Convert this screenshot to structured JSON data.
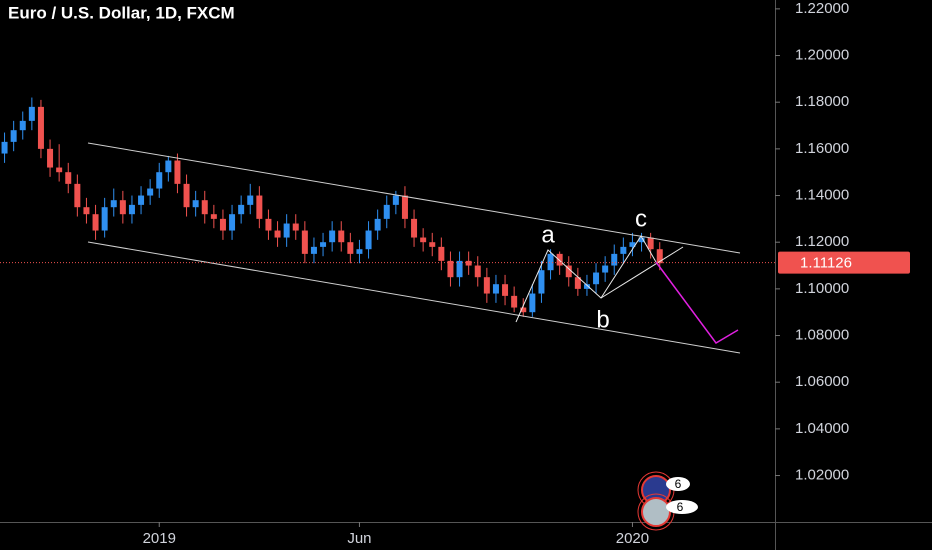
{
  "chart_data": {
    "type": "candlestick",
    "title": "Euro / U.S. Dollar, 1D, FXCM",
    "categories": [
      null,
      null,
      null,
      null,
      null,
      null,
      null,
      null,
      null,
      null,
      null,
      null,
      null,
      null,
      null,
      null,
      null,
      "2019",
      null,
      null,
      null,
      null,
      null,
      null,
      null,
      null,
      null,
      null,
      null,
      null,
      null,
      null,
      null,
      null,
      null,
      null,
      null,
      null,
      null,
      "Jun",
      null,
      null,
      null,
      null,
      null,
      null,
      null,
      null,
      null,
      null,
      null,
      null,
      null,
      null,
      null,
      null,
      null,
      null,
      null,
      null,
      null,
      null,
      null,
      null,
      null,
      null,
      null,
      null,
      null,
      "2020",
      null,
      null,
      null
    ],
    "open": [
      1.158,
      1.163,
      1.168,
      1.172,
      1.178,
      1.16,
      1.152,
      1.15,
      1.145,
      1.135,
      1.132,
      1.125,
      1.135,
      1.138,
      1.132,
      1.136,
      1.14,
      1.143,
      1.15,
      1.155,
      1.145,
      1.135,
      1.138,
      1.132,
      1.13,
      1.125,
      1.132,
      1.136,
      1.14,
      1.13,
      1.125,
      1.122,
      1.128,
      1.125,
      1.115,
      1.118,
      1.12,
      1.125,
      1.12,
      1.115,
      1.117,
      1.125,
      1.13,
      1.136,
      1.14,
      1.13,
      1.122,
      1.12,
      1.118,
      1.112,
      1.105,
      1.112,
      1.11,
      1.105,
      1.098,
      1.102,
      1.097,
      1.092,
      1.09,
      1.098,
      1.108,
      1.115,
      1.11,
      1.105,
      1.1,
      1.102,
      1.107,
      1.11,
      1.115,
      1.118,
      1.12,
      1.122,
      1.117
    ],
    "high": [
      1.167,
      1.172,
      1.176,
      1.182,
      1.181,
      1.164,
      1.162,
      1.154,
      1.149,
      1.139,
      1.136,
      1.139,
      1.143,
      1.142,
      1.14,
      1.144,
      1.147,
      1.154,
      1.157,
      1.158,
      1.149,
      1.142,
      1.142,
      1.136,
      1.134,
      1.136,
      1.14,
      1.145,
      1.144,
      1.134,
      1.129,
      1.132,
      1.132,
      1.129,
      1.122,
      1.124,
      1.129,
      1.129,
      1.124,
      1.121,
      1.129,
      1.134,
      1.14,
      1.142,
      1.144,
      1.134,
      1.126,
      1.124,
      1.122,
      1.116,
      1.116,
      1.116,
      1.114,
      1.109,
      1.106,
      1.106,
      1.101,
      1.096,
      1.102,
      1.112,
      1.117,
      1.116,
      1.114,
      1.109,
      1.106,
      1.111,
      1.114,
      1.119,
      1.122,
      1.124,
      1.124,
      1.124,
      1.12
    ],
    "low": [
      1.154,
      1.159,
      1.164,
      1.168,
      1.156,
      1.148,
      1.146,
      1.141,
      1.131,
      1.128,
      1.121,
      1.122,
      1.131,
      1.128,
      1.128,
      1.132,
      1.136,
      1.139,
      1.146,
      1.141,
      1.131,
      1.131,
      1.128,
      1.126,
      1.121,
      1.121,
      1.128,
      1.132,
      1.126,
      1.121,
      1.118,
      1.118,
      1.121,
      1.111,
      1.111,
      1.114,
      1.116,
      1.116,
      1.111,
      1.111,
      1.113,
      1.121,
      1.126,
      1.132,
      1.126,
      1.118,
      1.116,
      1.114,
      1.108,
      1.101,
      1.101,
      1.106,
      1.101,
      1.094,
      1.094,
      1.093,
      1.09,
      1.088,
      1.088,
      1.094,
      1.104,
      1.106,
      1.101,
      1.097,
      1.097,
      1.098,
      1.103,
      1.106,
      1.111,
      1.114,
      1.116,
      1.113,
      1.108
    ],
    "close": [
      1.163,
      1.168,
      1.172,
      1.178,
      1.16,
      1.152,
      1.15,
      1.145,
      1.135,
      1.132,
      1.125,
      1.135,
      1.138,
      1.132,
      1.136,
      1.14,
      1.143,
      1.15,
      1.155,
      1.145,
      1.135,
      1.138,
      1.132,
      1.13,
      1.125,
      1.132,
      1.136,
      1.14,
      1.13,
      1.125,
      1.122,
      1.128,
      1.125,
      1.115,
      1.118,
      1.12,
      1.125,
      1.12,
      1.115,
      1.117,
      1.125,
      1.13,
      1.136,
      1.14,
      1.13,
      1.122,
      1.12,
      1.118,
      1.112,
      1.105,
      1.112,
      1.11,
      1.105,
      1.098,
      1.102,
      1.097,
      1.092,
      1.09,
      1.098,
      1.108,
      1.115,
      1.11,
      1.105,
      1.1,
      1.102,
      1.107,
      1.11,
      1.115,
      1.118,
      1.12,
      1.122,
      1.117,
      1.111
    ],
    "up_color": "#2f8ff0",
    "down_color": "#f0524f",
    "ylim": [
      1.0048,
      1.2238
    ],
    "yticks": [
      {
        "value": 1.22,
        "label": "1.22000"
      },
      {
        "value": 1.2,
        "label": "1.20000"
      },
      {
        "value": 1.18,
        "label": "1.18000"
      },
      {
        "value": 1.16,
        "label": "1.16000"
      },
      {
        "value": 1.14,
        "label": "1.14000"
      },
      {
        "value": 1.12,
        "label": "1.12000"
      },
      {
        "value": 1.1,
        "label": "1.10000"
      },
      {
        "value": 1.08,
        "label": "1.08000"
      },
      {
        "value": 1.06,
        "label": "1.06000"
      },
      {
        "value": 1.04,
        "label": "1.04000"
      },
      {
        "value": 1.02,
        "label": "1.02000"
      }
    ],
    "last_price": 1.11126,
    "last_price_color": "#f0524f",
    "wave_labels": [
      "a",
      "b",
      "c"
    ],
    "event_badges": [
      6,
      6
    ]
  }
}
